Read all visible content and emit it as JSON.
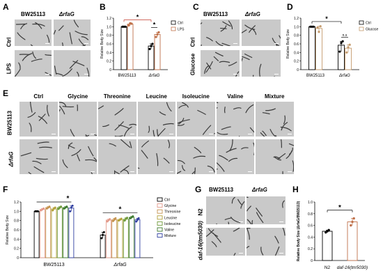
{
  "panels": {
    "A": {
      "letter": "A",
      "col_labels": [
        "BW25113",
        "ΔrfaG"
      ],
      "row_labels": [
        "Ctrl",
        "LPS"
      ]
    },
    "B": {
      "letter": "B"
    },
    "C": {
      "letter": "C",
      "col_labels": [
        "BW25113",
        "ΔrfaG"
      ],
      "row_labels": [
        "Ctrl",
        "Glucose"
      ]
    },
    "D": {
      "letter": "D"
    },
    "E": {
      "letter": "E",
      "col_labels": [
        "Ctrl",
        "Glycine",
        "Threonine",
        "Leucine",
        "Isoleucine",
        "Valine",
        "Mixture"
      ],
      "row_labels": [
        "BW25113",
        "ΔrfaG"
      ]
    },
    "F": {
      "letter": "F"
    },
    "G": {
      "letter": "G",
      "col_labels": [
        "BW25113",
        "ΔrfaG"
      ],
      "row_labels": [
        "N2",
        "daf-16(tm5030)"
      ]
    },
    "H": {
      "letter": "H"
    }
  },
  "colors": {
    "ctrl": "#000000",
    "lps": "#c0714a",
    "glucose": "#c49a6c",
    "glycine": "#e39a8b",
    "threonine": "#c5924f",
    "leucine": "#b3a13a",
    "isoleucine": "#6f9a3a",
    "valine": "#3d7a2e",
    "mixture": "#2f3ea0",
    "micrograph_bg": "#c9c9c9",
    "worm": "#3a3a3a"
  },
  "chart_data": [
    {
      "panel": "B",
      "type": "bar",
      "ylabel": "Relative Body Size",
      "ylim": [
        0,
        1.2
      ],
      "yticks": [
        "0",
        "0.2",
        "0.4",
        "0.6",
        "0.8",
        "1.0",
        "1.2"
      ],
      "categories": [
        "BW25113",
        "ΔrfaG"
      ],
      "series": [
        {
          "name": "Ctrl",
          "values": [
            1.0,
            0.55
          ],
          "points": [
            [
              1.0,
              1.0,
              1.0
            ],
            [
              0.48,
              0.55,
              0.6
            ]
          ]
        },
        {
          "name": "LPS",
          "values": [
            1.06,
            0.82
          ],
          "points": [
            [
              1.03,
              1.08,
              1.07
            ],
            [
              0.76,
              0.82,
              0.87
            ]
          ]
        }
      ],
      "significance": [
        "*",
        "*"
      ]
    },
    {
      "panel": "D",
      "type": "bar",
      "ylabel": "Relative Body Size",
      "ylim": [
        0,
        1.2
      ],
      "yticks": [
        "0",
        "0.2",
        "0.4",
        "0.6",
        "0.8",
        "1.0",
        "1.2"
      ],
      "categories": [
        "BW25113",
        "ΔrfaG"
      ],
      "series": [
        {
          "name": "Ctrl",
          "values": [
            1.0,
            0.57
          ],
          "points": [
            [
              1.0,
              1.0,
              1.0
            ],
            [
              0.42,
              0.62,
              0.66
            ]
          ]
        },
        {
          "name": "Glucose",
          "values": [
            0.96,
            0.5
          ],
          "points": [
            [
              0.98,
              0.88,
              1.01
            ],
            [
              0.4,
              0.52,
              0.58
            ]
          ]
        }
      ],
      "significance": [
        "*",
        "n.s"
      ]
    },
    {
      "panel": "F",
      "type": "bar",
      "ylabel": "Relative Body Size",
      "ylim": [
        0,
        1.2
      ],
      "yticks": [
        "0",
        "0.2",
        "0.4",
        "0.6",
        "0.8",
        "1.0",
        "1.2"
      ],
      "categories": [
        "BW25113",
        "ΔrfaG"
      ],
      "series": [
        {
          "name": "Ctrl",
          "values": [
            1.0,
            0.49
          ],
          "points": [
            [
              1.0,
              1.0,
              1.0
            ],
            [
              0.42,
              0.49,
              0.55
            ]
          ]
        },
        {
          "name": "Glycine",
          "values": [
            1.04,
            0.81
          ],
          "points": [
            [
              1.02,
              1.04,
              1.06
            ],
            [
              0.78,
              0.81,
              0.83
            ]
          ]
        },
        {
          "name": "Threonine",
          "values": [
            1.08,
            0.82
          ],
          "points": [
            [
              1.06,
              1.08,
              1.1
            ],
            [
              0.79,
              0.82,
              0.85
            ]
          ]
        },
        {
          "name": "Leucine",
          "values": [
            1.05,
            0.82
          ],
          "points": [
            [
              1.02,
              1.06,
              1.08
            ],
            [
              0.8,
              0.82,
              0.84
            ]
          ]
        },
        {
          "name": "Isoleucine",
          "values": [
            1.08,
            0.83
          ],
          "points": [
            [
              1.05,
              1.08,
              1.1
            ],
            [
              0.8,
              0.84,
              0.86
            ]
          ]
        },
        {
          "name": "Valine",
          "values": [
            1.08,
            0.87
          ],
          "points": [
            [
              1.06,
              1.08,
              1.1
            ],
            [
              0.85,
              0.87,
              0.89
            ]
          ]
        },
        {
          "name": "Mixture",
          "values": [
            1.07,
            0.82
          ],
          "points": [
            [
              1.0,
              1.08,
              1.12
            ],
            [
              0.78,
              0.82,
              0.85
            ]
          ]
        }
      ],
      "significance": [
        "*",
        "*"
      ]
    },
    {
      "panel": "H",
      "type": "bar",
      "ylabel": "Relative Body Size (ΔrfaG/BW25113)",
      "ylim": [
        0,
        1.0
      ],
      "yticks": [
        "0",
        "0.2",
        "0.4",
        "0.6",
        "0.8",
        "1.0"
      ],
      "categories": [
        "N2",
        "daf-16(tm5030)"
      ],
      "series": [
        {
          "name": "",
          "values": [
            0.5,
            0.66
          ],
          "points": [
            [
              0.48,
              0.5,
              0.52
            ],
            [
              0.6,
              0.66,
              0.72
            ]
          ]
        }
      ],
      "bar_colors": [
        "#000000",
        "#c0714a"
      ],
      "significance": [
        "*"
      ]
    }
  ]
}
